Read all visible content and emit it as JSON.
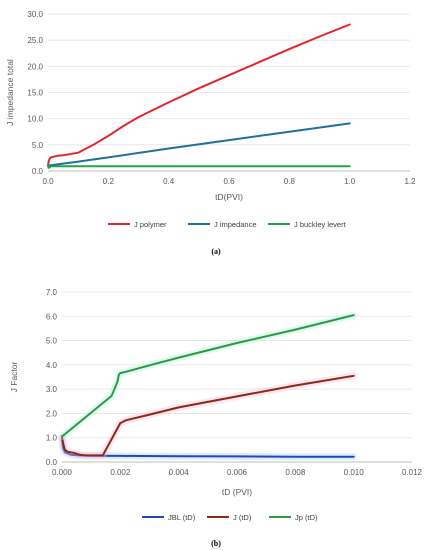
{
  "charts": [
    {
      "id": "a",
      "caption": "(a)",
      "chart_data": {
        "type": "line",
        "title": "",
        "xlabel": "tD(PVI)",
        "ylabel": "J impedance total",
        "xlim": [
          0,
          1.2
        ],
        "ylim": [
          0,
          30
        ],
        "xticks": [
          0,
          0.2,
          0.4,
          0.6,
          0.8,
          1.0,
          1.2
        ],
        "xtick_labels": [
          "0.0",
          "0.2",
          "0.4",
          "0.6",
          "0.8",
          "1.0",
          "1.2"
        ],
        "yticks": [
          0,
          5,
          10,
          15,
          20,
          25,
          30
        ],
        "ytick_labels": [
          "0.0",
          "5.0",
          "10.0",
          "15.0",
          "20.0",
          "25.0",
          "30.0"
        ],
        "grid": "horizontal",
        "legend": "bottom",
        "series": [
          {
            "name": "J polymer",
            "color": "#e3262d",
            "x": [
              0,
              0.002,
              0.005,
              0.01,
              0.03,
              0.05,
              0.1,
              0.15,
              0.2,
              0.25,
              0.3,
              0.4,
              0.5,
              0.6,
              0.7,
              0.8,
              0.9,
              1.0
            ],
            "y": [
              1.0,
              1.8,
              2.3,
              2.6,
              2.9,
              3.0,
              3.5,
              5.0,
              6.7,
              8.6,
              10.3,
              13.1,
              15.8,
              18.3,
              20.8,
              23.3,
              25.7,
              28.0
            ]
          },
          {
            "name": "J impedance",
            "color": "#1f6f9f",
            "x": [
              0,
              0.01,
              0.1,
              0.2,
              0.4,
              0.6,
              0.8,
              1.0
            ],
            "y": [
              1.0,
              1.1,
              1.8,
              2.6,
              4.3,
              5.9,
              7.5,
              9.1
            ]
          },
          {
            "name": "J buckley levert",
            "color": "#24a245",
            "x": [
              0,
              0.002,
              0.01,
              0.2,
              0.5,
              1.0
            ],
            "y": [
              1.0,
              0.6,
              0.9,
              0.9,
              0.9,
              0.9
            ]
          }
        ]
      }
    },
    {
      "id": "b",
      "caption": "(b)",
      "chart_data": {
        "type": "line",
        "title": "",
        "xlabel": "tD (PVI)",
        "ylabel": "J Factor",
        "xlim": [
          0,
          0.012
        ],
        "ylim": [
          0,
          7
        ],
        "xticks": [
          0,
          0.002,
          0.004,
          0.006,
          0.008,
          0.01,
          0.012
        ],
        "xtick_labels": [
          "0.000",
          "0.002",
          "0.004",
          "0.006",
          "0.008",
          "0.010",
          "0.012"
        ],
        "yticks": [
          0,
          1,
          2,
          3,
          4,
          5,
          6,
          7
        ],
        "ytick_labels": [
          "0.0",
          "1.0",
          "2.0",
          "3.0",
          "4.0",
          "5.0",
          "6.0",
          "7.0"
        ],
        "grid": "horizontal",
        "legend": "bottom",
        "series": [
          {
            "name": "JBL (tD)",
            "color": "#1f49b8",
            "glow": "#a8c8ff",
            "x": [
              0,
              3e-05,
              0.0001,
              0.0003,
              0.0006,
              0.001,
              0.002,
              0.004,
              0.006,
              0.008,
              0.01
            ],
            "y": [
              1.0,
              0.6,
              0.4,
              0.3,
              0.27,
              0.26,
              0.25,
              0.24,
              0.23,
              0.22,
              0.22
            ]
          },
          {
            "name": "J (tD)",
            "color": "#8a2a12",
            "glow": "#ffb3d9",
            "x": [
              0,
              5e-05,
              0.0001,
              0.0002,
              0.0004,
              0.0006,
              0.0008,
              0.0014,
              0.002,
              0.0022,
              0.003,
              0.004,
              0.006,
              0.008,
              0.01
            ],
            "y": [
              1.0,
              0.7,
              0.5,
              0.42,
              0.38,
              0.3,
              0.27,
              0.27,
              1.6,
              1.72,
              1.95,
              2.25,
              2.7,
              3.15,
              3.55
            ]
          },
          {
            "name": "Jp (tD)",
            "color": "#2d9a3e",
            "glow": "#a6f2dd",
            "x": [
              0,
              0.0017,
              0.0019,
              0.00195,
              0.002,
              0.0022,
              0.003,
              0.004,
              0.006,
              0.008,
              0.01
            ],
            "y": [
              1.05,
              2.72,
              3.3,
              3.6,
              3.66,
              3.72,
              3.98,
              4.3,
              4.9,
              5.45,
              6.05
            ]
          }
        ]
      }
    }
  ]
}
